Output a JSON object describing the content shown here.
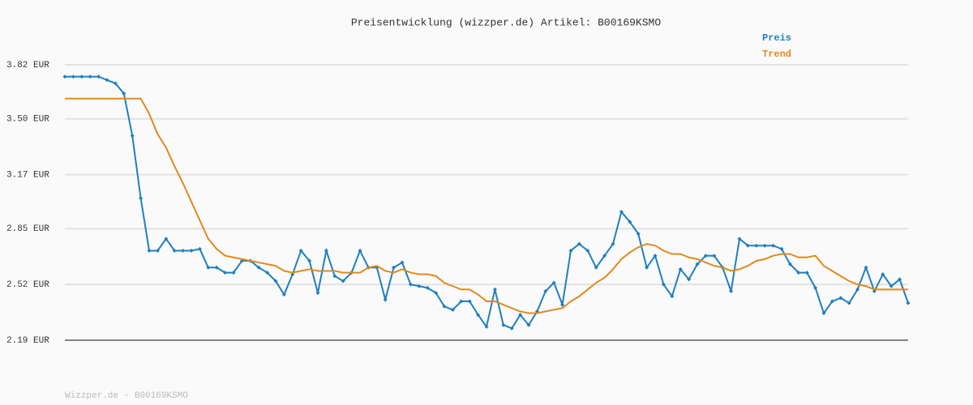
{
  "chart_data": {
    "type": "line",
    "title": "Preisentwicklung (wizzper.de) Artikel: B00169KSMO",
    "footer": "Wizzper.de - B00169KSMO",
    "ylim": [
      2.19,
      3.82
    ],
    "yticks": [
      {
        "value": 2.19,
        "label": "2.19 EUR"
      },
      {
        "value": 2.52,
        "label": "2.52 EUR"
      },
      {
        "value": 2.85,
        "label": "2.85 EUR"
      },
      {
        "value": 3.17,
        "label": "3.17 EUR"
      },
      {
        "value": 3.5,
        "label": "3.50 EUR"
      },
      {
        "value": 3.82,
        "label": "3.82 EUR"
      }
    ],
    "grid": true,
    "legend": "top-right",
    "series": [
      {
        "name": "Preis",
        "color": "#1f7fc0",
        "markers": true,
        "values": [
          3.75,
          3.75,
          3.75,
          3.75,
          3.75,
          3.73,
          3.71,
          3.65,
          3.4,
          3.03,
          2.72,
          2.72,
          2.79,
          2.72,
          2.72,
          2.72,
          2.73,
          2.62,
          2.62,
          2.59,
          2.59,
          2.66,
          2.66,
          2.62,
          2.59,
          2.54,
          2.46,
          2.58,
          2.72,
          2.66,
          2.47,
          2.72,
          2.57,
          2.54,
          2.59,
          2.72,
          2.62,
          2.62,
          2.43,
          2.62,
          2.65,
          2.52,
          2.51,
          2.5,
          2.47,
          2.39,
          2.37,
          2.42,
          2.42,
          2.34,
          2.27,
          2.49,
          2.28,
          2.26,
          2.34,
          2.28,
          2.36,
          2.48,
          2.53,
          2.4,
          2.72,
          2.76,
          2.72,
          2.62,
          2.69,
          2.76,
          2.95,
          2.89,
          2.82,
          2.62,
          2.69,
          2.52,
          2.45,
          2.61,
          2.55,
          2.64,
          2.69,
          2.69,
          2.62,
          2.48,
          2.79,
          2.75,
          2.75,
          2.75,
          2.75,
          2.73,
          2.64,
          2.59,
          2.59,
          2.5,
          2.35,
          2.42,
          2.44,
          2.41,
          2.49,
          2.62,
          2.48,
          2.58,
          2.51,
          2.55,
          2.41
        ]
      },
      {
        "name": "Trend",
        "color": "#e08a1e",
        "markers": false,
        "values": [
          3.62,
          3.62,
          3.62,
          3.62,
          3.62,
          3.62,
          3.62,
          3.62,
          3.62,
          3.62,
          3.53,
          3.41,
          3.33,
          3.22,
          3.12,
          3.01,
          2.9,
          2.79,
          2.73,
          2.69,
          2.68,
          2.67,
          2.66,
          2.65,
          2.64,
          2.63,
          2.6,
          2.59,
          2.6,
          2.61,
          2.6,
          2.6,
          2.6,
          2.59,
          2.59,
          2.59,
          2.62,
          2.63,
          2.6,
          2.59,
          2.61,
          2.59,
          2.58,
          2.58,
          2.57,
          2.53,
          2.51,
          2.49,
          2.49,
          2.46,
          2.42,
          2.42,
          2.4,
          2.38,
          2.36,
          2.35,
          2.35,
          2.36,
          2.37,
          2.38,
          2.42,
          2.45,
          2.49,
          2.53,
          2.56,
          2.61,
          2.67,
          2.71,
          2.74,
          2.76,
          2.75,
          2.72,
          2.7,
          2.7,
          2.68,
          2.67,
          2.65,
          2.63,
          2.62,
          2.6,
          2.61,
          2.63,
          2.66,
          2.67,
          2.69,
          2.7,
          2.7,
          2.68,
          2.68,
          2.69,
          2.63,
          2.6,
          2.57,
          2.54,
          2.52,
          2.51,
          2.49,
          2.49,
          2.49,
          2.49,
          2.49
        ]
      }
    ]
  }
}
